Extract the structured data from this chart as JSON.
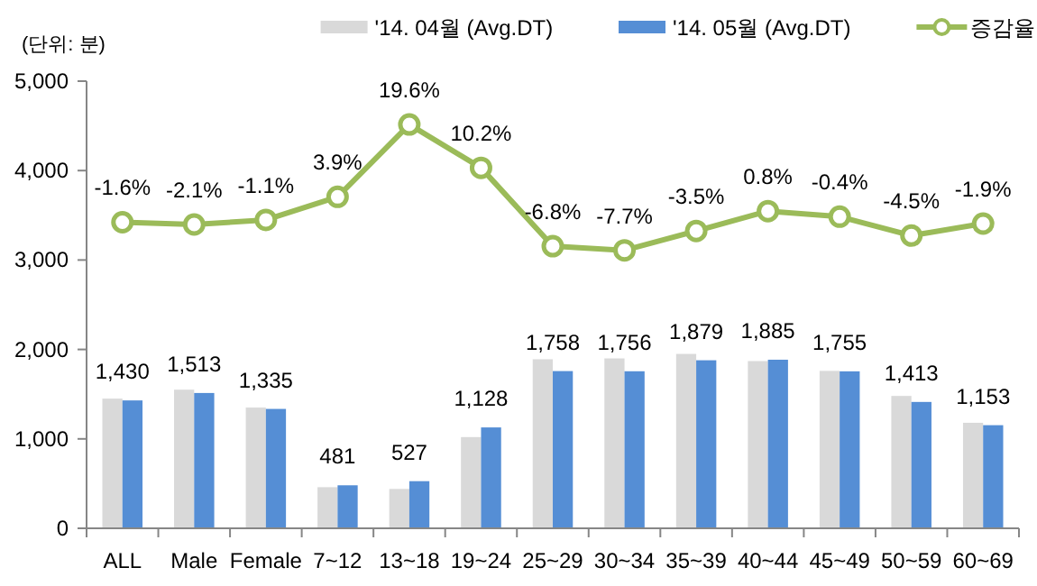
{
  "chart_data": {
    "type": "bar",
    "categories": [
      "ALL",
      "Male",
      "Female",
      "7~12",
      "13~18",
      "19~24",
      "25~29",
      "30~34",
      "35~39",
      "40~44",
      "45~49",
      "50~59",
      "60~69"
    ],
    "series": [
      {
        "name": "'14. 04월 (Avg.DT)",
        "color": "#d9d9d9",
        "values": [
          1450,
          1550,
          1350,
          460,
          440,
          1020,
          1890,
          1900,
          1950,
          1870,
          1760,
          1480,
          1180
        ]
      },
      {
        "name": "'14. 05월 (Avg.DT)",
        "color": "#558ed5",
        "values": [
          1430,
          1513,
          1335,
          481,
          527,
          1128,
          1758,
          1756,
          1879,
          1885,
          1755,
          1413,
          1153
        ],
        "value_labels": [
          "1,430",
          "1,513",
          "1,335",
          "481",
          "527",
          "1,128",
          "1,758",
          "1,756",
          "1,879",
          "1,885",
          "1,755",
          "1,413",
          "1,153"
        ]
      },
      {
        "name": "증감율",
        "type": "line",
        "axis": "y2",
        "color": "#9bbb59",
        "marker": "circle",
        "values": [
          -1.6,
          -2.1,
          -1.1,
          3.9,
          19.6,
          10.2,
          -6.8,
          -7.7,
          -3.5,
          0.8,
          -0.4,
          -4.5,
          -1.9
        ],
        "value_labels": [
          "-1.6%",
          "-2.1%",
          "-1.1%",
          "3.9%",
          "19.6%",
          "10.2%",
          "-6.8%",
          "-7.7%",
          "-3.5%",
          "0.8%",
          "-0.4%",
          "-4.5%",
          "-1.9%"
        ]
      }
    ],
    "ylim": [
      0,
      5000
    ],
    "yticks": [
      0,
      {
        "value": 1000,
        "label": "1,000"
      },
      {
        "value": 2000,
        "label": "2,000"
      },
      {
        "value": 3000,
        "label": "3,000"
      },
      {
        "value": 4000,
        "label": "4,000"
      },
      {
        "value": 5000,
        "label": "5,000"
      }
    ],
    "y2lim": [
      -68,
      29
    ],
    "tick_labels": "xy",
    "legend": "top right",
    "annotations": [
      "(단위: 분)"
    ]
  }
}
